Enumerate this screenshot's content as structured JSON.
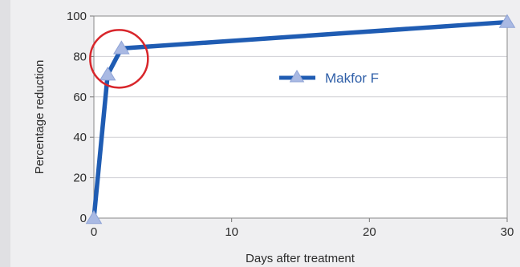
{
  "chart_data": {
    "type": "line",
    "xlabel": "Days after treatment",
    "ylabel": "Percentage reduction",
    "xlim": [
      0,
      30
    ],
    "ylim": [
      0,
      100
    ],
    "x_ticks": [
      0,
      10,
      20,
      30
    ],
    "y_ticks": [
      0,
      20,
      40,
      60,
      80,
      100
    ],
    "grid": "horizontal",
    "legend_position": "middle-right",
    "series": [
      {
        "name": "Makfor F",
        "color": "#1f5cb3",
        "marker_color": "#a9b9e3",
        "marker": "triangle",
        "x": [
          0,
          1,
          2,
          30
        ],
        "y": [
          0,
          71,
          84,
          97
        ]
      }
    ],
    "annotation": {
      "shape": "circle",
      "color": "#d8262b",
      "target_x": 2,
      "target_y": 84
    }
  }
}
